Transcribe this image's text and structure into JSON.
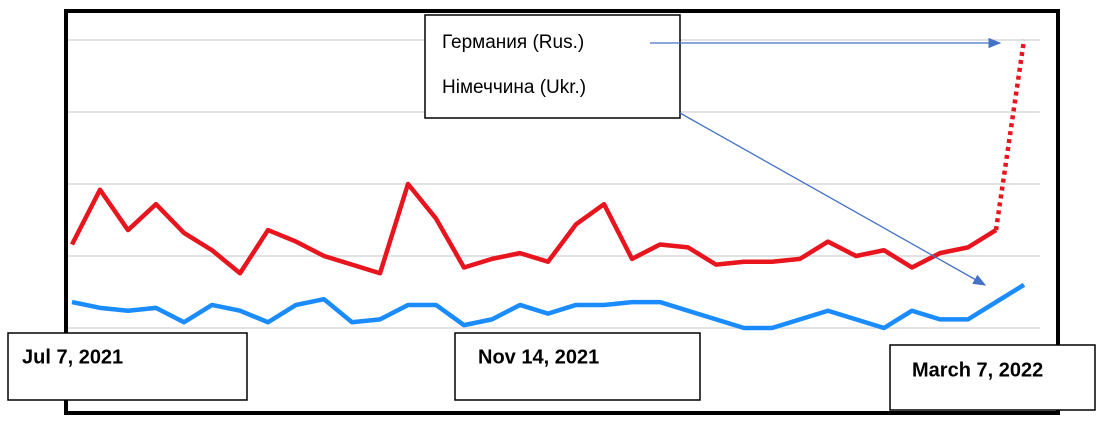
{
  "chart_data": {
    "type": "line",
    "series": [
      {
        "name": "Германия (Rus.)",
        "color": "#e8141e",
        "dotted_from_index": 33,
        "values": [
          29,
          48,
          34,
          43,
          33,
          27,
          19,
          34,
          30,
          25,
          22,
          19,
          50,
          38,
          21,
          24,
          26,
          23,
          36,
          43,
          24,
          29,
          28,
          22,
          23,
          23,
          24,
          30,
          25,
          27,
          21,
          26,
          28,
          34,
          100
        ]
      },
      {
        "name": "Німеччина (Ukr.)",
        "color": "#1a8cff",
        "values": [
          9,
          7,
          6,
          7,
          2,
          8,
          6,
          2,
          8,
          10,
          2,
          3,
          8,
          8,
          1,
          3,
          8,
          5,
          8,
          8,
          9,
          9,
          6,
          3,
          0,
          0,
          3,
          6,
          3,
          0,
          6,
          3,
          3,
          9,
          15
        ]
      }
    ],
    "annotations": [
      "Jul 7, 2021",
      "Nov 14, 2021",
      "March 7, 2022"
    ],
    "ylim": [
      0,
      100
    ],
    "yticks": [
      0,
      25,
      50,
      75,
      100
    ],
    "grid": true
  }
}
